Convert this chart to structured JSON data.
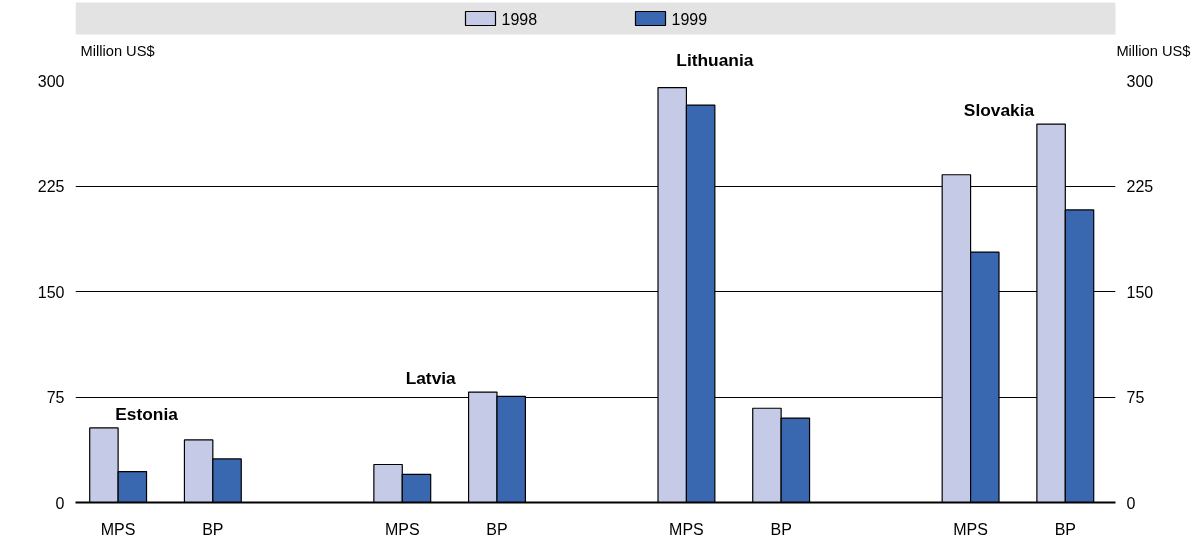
{
  "chart_data": {
    "type": "bar",
    "categories": [
      "MPS",
      "BP",
      null,
      "MPS",
      "BP",
      null,
      "MPS",
      "BP",
      null,
      "MPS",
      "BP"
    ],
    "series": [
      {
        "name": "1998",
        "color": "#c5cae6",
        "values": [
          53,
          44.5,
          null,
          27,
          78.5,
          null,
          295,
          67,
          null,
          233,
          269
        ]
      },
      {
        "name": "1999",
        "color": "#3a68b0",
        "values": [
          22,
          31,
          null,
          20,
          75.5,
          null,
          282.5,
          60,
          null,
          178,
          208
        ]
      }
    ],
    "ylabel": "Million US$",
    "y2label": "Million US$",
    "ylim": [
      0,
      300
    ],
    "yticks": [
      0,
      75,
      150,
      225,
      300
    ],
    "y2lim": [
      0,
      300
    ],
    "y2ticks": [
      0,
      75,
      150,
      225,
      300
    ],
    "annotations": [
      "Estonia",
      "Latvia",
      "Lithuania",
      "Slovakia"
    ],
    "grid": "y",
    "legend": "top"
  }
}
